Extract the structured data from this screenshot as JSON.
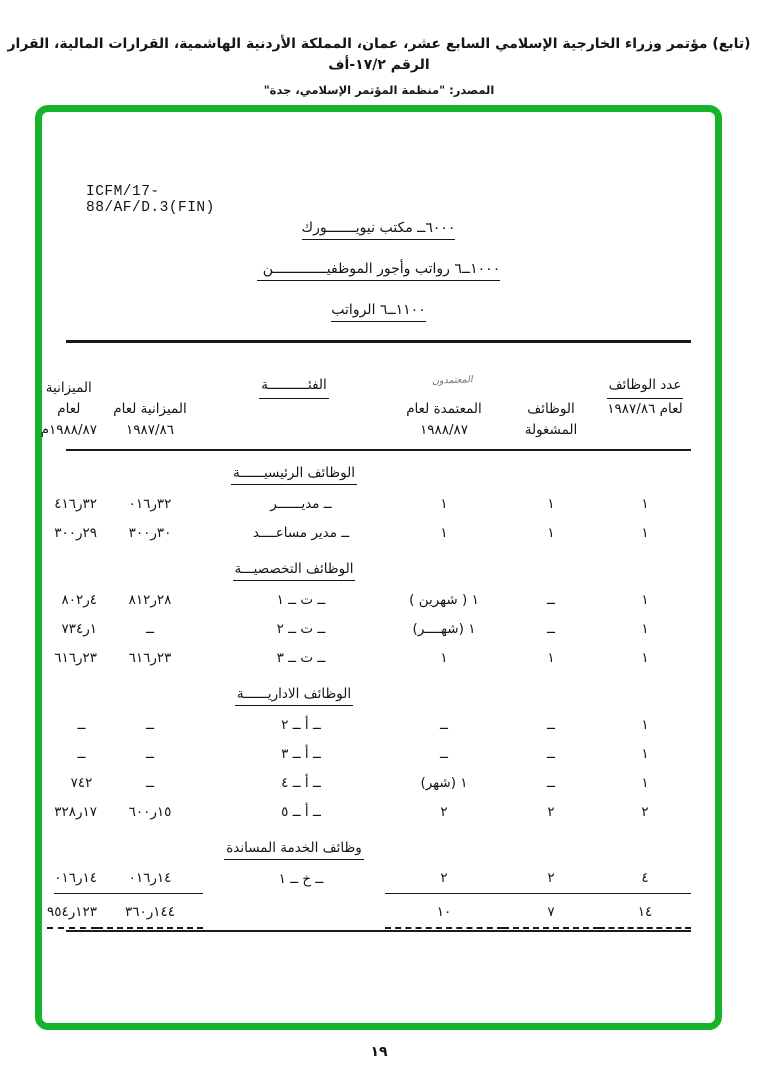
{
  "colors": {
    "border_green": "#17b32b",
    "ink": "#151515"
  },
  "page_header": {
    "line1": "(تابع) مؤتمر وزراء الخارجية الإسلامي السابع عشر، عمان، المملكة الأردنية الهاشمية، القرارات المالية، القرار الرقم ١٧/٢-أف",
    "source_line": "المصدر:  \"منظمة المؤتمر الإسلامي، جدة\""
  },
  "document": {
    "ref_code": "ICFM/17-88/AF/D.3(FIN)",
    "headings": [
      "٦٠٠٠ــ مكتب نيويـــــــورك",
      "١٠٠٠ــ٦ رواتب وأجور الموظفيـــــــــــــن",
      "١١٠٠ــ٦ الرواتب"
    ]
  },
  "table": {
    "header": {
      "count_title": "عدد الوظائف",
      "count_sub": "لعام ١٩٨٧/٨٦",
      "occupied_l1": "الوظائف",
      "occupied_l2": "المشغولة",
      "approved_l1": "المعتمدة لعام",
      "approved_l2": "١٩٨٨/٨٧",
      "handwritten_note": "المعتمدون",
      "category_title": "الفئــــــــــة",
      "budget_8687_l1": "الميزانية لعام",
      "budget_8687_l2": "١٩٨٧/٨٦",
      "budget_8788_l1": "الميزانية لعام",
      "budget_8788_l2": "١٩٨٨/٨٧م"
    },
    "sections": [
      {
        "title": "الوظائف الرئيسيــــــة",
        "rows": [
          {
            "count": "١",
            "occupied": "١",
            "approved": "١",
            "category": "ــ مديــــــر",
            "budget_8687": "٣٢ر٠١٦",
            "budget_8788": "٣٢ر٤١٦",
            "style": "normal"
          },
          {
            "count": "١",
            "occupied": "١",
            "approved": "١",
            "category": "ــ مدير مساعــــد",
            "budget_8687": "٣٠ر٣٠٠",
            "budget_8788": "٢٩ر٣٠٠",
            "style": "normal"
          }
        ]
      },
      {
        "title": "الوظائف التخصصيـــة",
        "rows": [
          {
            "count": "١",
            "occupied": "ــ",
            "approved": "١ ( شهرين )",
            "category": "ــ ت ــ ١",
            "budget_8687": "٢٨ر٨١٢",
            "budget_8788": "٤ر٨٠٢",
            "style": "normal"
          },
          {
            "count": "١",
            "occupied": "ــ",
            "approved": "١ (شهــــر)",
            "category": "ــ ت ــ ٢",
            "budget_8687": "ــ",
            "budget_8788": "١ر٧٣٤",
            "style": "normal"
          },
          {
            "count": "١",
            "occupied": "١",
            "approved": "١",
            "category": "ــ ت ــ ٣",
            "budget_8687": "٢٣ر٦١٦",
            "budget_8788": "٢٣ر٦١٦",
            "style": "normal"
          }
        ]
      },
      {
        "title": "الوظائف الاداريــــــة",
        "rows": [
          {
            "count": "١",
            "occupied": "ــ",
            "approved": "ــ",
            "category": "ــ أ ــ ٢",
            "budget_8687": "ــ",
            "budget_8788": "ــ",
            "style": "normal"
          },
          {
            "count": "١",
            "occupied": "ــ",
            "approved": "ــ",
            "category": "ــ أ ــ ٣",
            "budget_8687": "ــ",
            "budget_8788": "ــ",
            "style": "normal"
          },
          {
            "count": "١",
            "occupied": "ــ",
            "approved": "١ (شهر)",
            "category": "ــ أ ــ ٤",
            "budget_8687": "ــ",
            "budget_8788": "٧٤٢",
            "style": "normal"
          },
          {
            "count": "٢",
            "occupied": "٢",
            "approved": "٢",
            "category": "ــ أ ــ ٥",
            "budget_8687": "١٥ر٦٠٠",
            "budget_8788": "١٧ر٣٢٨",
            "style": "normal"
          }
        ]
      },
      {
        "title": "وظائف الخدمة المساندة",
        "rows": [
          {
            "count": "٤",
            "occupied": "٢",
            "approved": "٢",
            "category": "ــ خ ــ ١",
            "budget_8687": "١٤ر٠١٦",
            "budget_8788": "١٤ر٠١٦",
            "style": "underline"
          }
        ]
      }
    ],
    "totals": {
      "count": "١٤",
      "occupied": "٧",
      "approved": "١٠",
      "category": "",
      "budget_8687": "١٤٤ر٣٦٠",
      "budget_8788": "١٢٣ر٩٥٤"
    }
  },
  "footer": {
    "page_number": "١٩"
  }
}
